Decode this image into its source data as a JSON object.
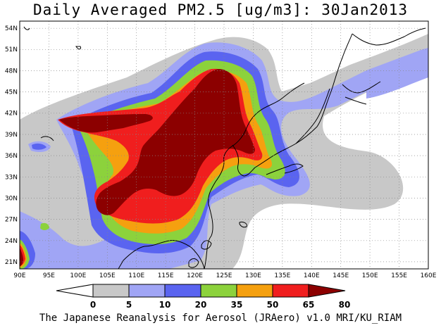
{
  "title": "Daily Averaged PM2.5 [ug/m3]: 30Jan2013",
  "credit": "The Japanese Reanalysis for Aerosol (JRAero) v1.0 MRI/KU_RIAM",
  "map": {
    "lon_range": [
      90,
      160
    ],
    "lat_range": [
      20,
      55
    ],
    "lon_ticks": [
      "90E",
      "95E",
      "100E",
      "105E",
      "110E",
      "115E",
      "120E",
      "125E",
      "130E",
      "135E",
      "140E",
      "145E",
      "150E",
      "155E",
      "160E"
    ],
    "lat_ticks": [
      "21N",
      "24N",
      "27N",
      "30N",
      "33N",
      "36N",
      "39N",
      "42N",
      "45N",
      "48N",
      "51N",
      "54N"
    ],
    "gridlines": "dotted"
  },
  "colorbar": {
    "levels": [
      "0",
      "5",
      "10",
      "20",
      "35",
      "50",
      "65",
      "80"
    ],
    "colors": [
      "#ffffff",
      "#c8c8c8",
      "#a0a5f5",
      "#5a64f0",
      "#8cd23c",
      "#f5a00f",
      "#f01e1e",
      "#8c0000"
    ]
  },
  "colors": {
    "land": "#ffffff",
    "coast": "#000000"
  }
}
